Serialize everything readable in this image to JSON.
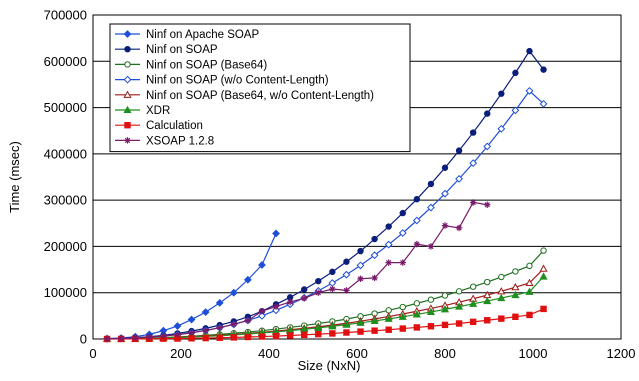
{
  "chart_data": {
    "type": "line",
    "xlabel": "Size (NxN)",
    "ylabel": "Time (msec)",
    "xlim": [
      0,
      1200
    ],
    "ylim": [
      0,
      700000
    ],
    "xticks": [
      "0",
      "200",
      "400",
      "600",
      "800",
      "1000",
      "1200"
    ],
    "yticks": [
      "0",
      "100000",
      "200000",
      "300000",
      "400000",
      "500000",
      "600000",
      "700000"
    ],
    "grid": "horizontal",
    "legend_position": "top-left",
    "series": [
      {
        "name": "Ninf on Apache SOAP",
        "color": "#1f4fd8",
        "marker": "diamond-filled",
        "points": [
          [
            32,
            1000
          ],
          [
            64,
            2000
          ],
          [
            96,
            5000
          ],
          [
            128,
            10000
          ],
          [
            160,
            18000
          ],
          [
            192,
            28000
          ],
          [
            224,
            42000
          ],
          [
            256,
            58000
          ],
          [
            288,
            78000
          ],
          [
            320,
            100000
          ],
          [
            352,
            128000
          ],
          [
            384,
            160000
          ],
          [
            416,
            228000
          ]
        ]
      },
      {
        "name": "Ninf on SOAP",
        "color": "#0a1e7a",
        "marker": "circle-filled",
        "points": [
          [
            32,
            500
          ],
          [
            64,
            1500
          ],
          [
            96,
            3000
          ],
          [
            128,
            5000
          ],
          [
            160,
            8000
          ],
          [
            192,
            12000
          ],
          [
            224,
            17000
          ],
          [
            256,
            23000
          ],
          [
            288,
            30000
          ],
          [
            320,
            38000
          ],
          [
            352,
            48000
          ],
          [
            384,
            60000
          ],
          [
            416,
            75000
          ],
          [
            448,
            90000
          ],
          [
            480,
            107000
          ],
          [
            512,
            125000
          ],
          [
            544,
            145000
          ],
          [
            576,
            167000
          ],
          [
            608,
            190000
          ],
          [
            640,
            216000
          ],
          [
            672,
            243000
          ],
          [
            704,
            272000
          ],
          [
            736,
            302000
          ],
          [
            768,
            335000
          ],
          [
            800,
            370000
          ],
          [
            832,
            407000
          ],
          [
            864,
            446000
          ],
          [
            896,
            487000
          ],
          [
            928,
            530000
          ],
          [
            960,
            575000
          ],
          [
            992,
            622000
          ],
          [
            1024,
            582000
          ]
        ]
      },
      {
        "name": "Ninf on SOAP (Base64)",
        "color": "#1f6f1f",
        "marker": "circle-open",
        "points": [
          [
            32,
            200
          ],
          [
            64,
            500
          ],
          [
            96,
            1000
          ],
          [
            128,
            2000
          ],
          [
            160,
            3000
          ],
          [
            192,
            4500
          ],
          [
            224,
            6000
          ],
          [
            256,
            8000
          ],
          [
            288,
            10000
          ],
          [
            320,
            12500
          ],
          [
            352,
            15000
          ],
          [
            384,
            18000
          ],
          [
            416,
            21500
          ],
          [
            448,
            25000
          ],
          [
            480,
            29000
          ],
          [
            512,
            33500
          ],
          [
            544,
            38000
          ],
          [
            576,
            43000
          ],
          [
            608,
            49000
          ],
          [
            640,
            55000
          ],
          [
            672,
            62000
          ],
          [
            704,
            69000
          ],
          [
            736,
            77000
          ],
          [
            768,
            85000
          ],
          [
            800,
            94000
          ],
          [
            832,
            103000
          ],
          [
            864,
            113000
          ],
          [
            896,
            123000
          ],
          [
            928,
            134000
          ],
          [
            960,
            146000
          ],
          [
            992,
            158000
          ],
          [
            1024,
            191000
          ]
        ]
      },
      {
        "name": "Ninf on SOAP (w/o Content-Length)",
        "color": "#1f4fd8",
        "marker": "diamond-open",
        "points": [
          [
            32,
            400
          ],
          [
            64,
            1200
          ],
          [
            96,
            2500
          ],
          [
            128,
            4200
          ],
          [
            160,
            6500
          ],
          [
            192,
            9500
          ],
          [
            224,
            13500
          ],
          [
            256,
            18500
          ],
          [
            288,
            24500
          ],
          [
            320,
            31500
          ],
          [
            352,
            40000
          ],
          [
            384,
            50000
          ],
          [
            416,
            62000
          ],
          [
            448,
            75000
          ],
          [
            480,
            89000
          ],
          [
            512,
            104000
          ],
          [
            544,
            121000
          ],
          [
            576,
            139000
          ],
          [
            608,
            159000
          ],
          [
            640,
            181000
          ],
          [
            672,
            204000
          ],
          [
            704,
            229000
          ],
          [
            736,
            256000
          ],
          [
            768,
            284000
          ],
          [
            800,
            314000
          ],
          [
            832,
            346000
          ],
          [
            864,
            380000
          ],
          [
            896,
            416000
          ],
          [
            928,
            454000
          ],
          [
            960,
            494000
          ],
          [
            992,
            536000
          ],
          [
            1024,
            508000
          ]
        ]
      },
      {
        "name": "Ninf on SOAP (Base64, w/o Content-Length)",
        "color": "#a11a1a",
        "marker": "triangle-open",
        "points": [
          [
            32,
            200
          ],
          [
            64,
            400
          ],
          [
            96,
            800
          ],
          [
            128,
            1500
          ],
          [
            160,
            2500
          ],
          [
            192,
            3600
          ],
          [
            224,
            5000
          ],
          [
            256,
            6500
          ],
          [
            288,
            8200
          ],
          [
            320,
            10000
          ],
          [
            352,
            12000
          ],
          [
            384,
            14500
          ],
          [
            416,
            17000
          ],
          [
            448,
            20000
          ],
          [
            480,
            23000
          ],
          [
            512,
            26500
          ],
          [
            544,
            30000
          ],
          [
            576,
            34000
          ],
          [
            608,
            38500
          ],
          [
            640,
            43500
          ],
          [
            672,
            48500
          ],
          [
            704,
            54000
          ],
          [
            736,
            60000
          ],
          [
            768,
            66000
          ],
          [
            800,
            72500
          ],
          [
            832,
            79500
          ],
          [
            864,
            87000
          ],
          [
            896,
            95000
          ],
          [
            928,
            103000
          ],
          [
            960,
            112000
          ],
          [
            992,
            121000
          ],
          [
            1024,
            152000
          ]
        ]
      },
      {
        "name": "XDR",
        "color": "#1f8f1f",
        "marker": "triangle-filled",
        "points": [
          [
            32,
            200
          ],
          [
            64,
            400
          ],
          [
            96,
            800
          ],
          [
            128,
            1300
          ],
          [
            160,
            2000
          ],
          [
            192,
            3000
          ],
          [
            224,
            4200
          ],
          [
            256,
            5500
          ],
          [
            288,
            7000
          ],
          [
            320,
            8800
          ],
          [
            352,
            10800
          ],
          [
            384,
            13000
          ],
          [
            416,
            15500
          ],
          [
            448,
            18000
          ],
          [
            480,
            21000
          ],
          [
            512,
            24000
          ],
          [
            544,
            27500
          ],
          [
            576,
            31000
          ],
          [
            608,
            35000
          ],
          [
            640,
            39000
          ],
          [
            672,
            43500
          ],
          [
            704,
            48000
          ],
          [
            736,
            53000
          ],
          [
            768,
            58500
          ],
          [
            800,
            64000
          ],
          [
            832,
            70000
          ],
          [
            864,
            76000
          ],
          [
            896,
            82000
          ],
          [
            928,
            88500
          ],
          [
            960,
            95000
          ],
          [
            992,
            102000
          ],
          [
            1024,
            135000
          ]
        ]
      },
      {
        "name": "Calculation",
        "color": "#e01010",
        "marker": "square-filled",
        "points": [
          [
            32,
            50
          ],
          [
            64,
            100
          ],
          [
            96,
            200
          ],
          [
            128,
            400
          ],
          [
            160,
            700
          ],
          [
            192,
            1000
          ],
          [
            224,
            1500
          ],
          [
            256,
            2000
          ],
          [
            288,
            2700
          ],
          [
            320,
            3400
          ],
          [
            352,
            4300
          ],
          [
            384,
            5300
          ],
          [
            416,
            6400
          ],
          [
            448,
            7600
          ],
          [
            480,
            9000
          ],
          [
            512,
            10500
          ],
          [
            544,
            12000
          ],
          [
            576,
            14000
          ],
          [
            608,
            16000
          ],
          [
            640,
            18000
          ],
          [
            672,
            20000
          ],
          [
            704,
            22500
          ],
          [
            736,
            25000
          ],
          [
            768,
            27500
          ],
          [
            800,
            30500
          ],
          [
            832,
            33500
          ],
          [
            864,
            37000
          ],
          [
            896,
            40500
          ],
          [
            928,
            44000
          ],
          [
            960,
            48000
          ],
          [
            992,
            52000
          ],
          [
            1024,
            65000
          ]
        ]
      },
      {
        "name": "XSOAP 1.2.8",
        "color": "#7a1a6a",
        "marker": "asterisk",
        "points": [
          [
            32,
            300
          ],
          [
            64,
            1000
          ],
          [
            96,
            2000
          ],
          [
            128,
            4000
          ],
          [
            160,
            6500
          ],
          [
            192,
            9500
          ],
          [
            224,
            13500
          ],
          [
            256,
            18500
          ],
          [
            288,
            24500
          ],
          [
            320,
            32000
          ],
          [
            352,
            40000
          ],
          [
            384,
            60000
          ],
          [
            416,
            70000
          ],
          [
            448,
            80000
          ],
          [
            480,
            88000
          ],
          [
            512,
            100000
          ],
          [
            544,
            108000
          ],
          [
            576,
            105000
          ],
          [
            608,
            130000
          ],
          [
            640,
            132000
          ],
          [
            672,
            165000
          ],
          [
            704,
            165000
          ],
          [
            736,
            205000
          ],
          [
            768,
            200000
          ],
          [
            800,
            245000
          ],
          [
            832,
            240000
          ],
          [
            864,
            295000
          ],
          [
            896,
            290000
          ]
        ]
      }
    ]
  }
}
